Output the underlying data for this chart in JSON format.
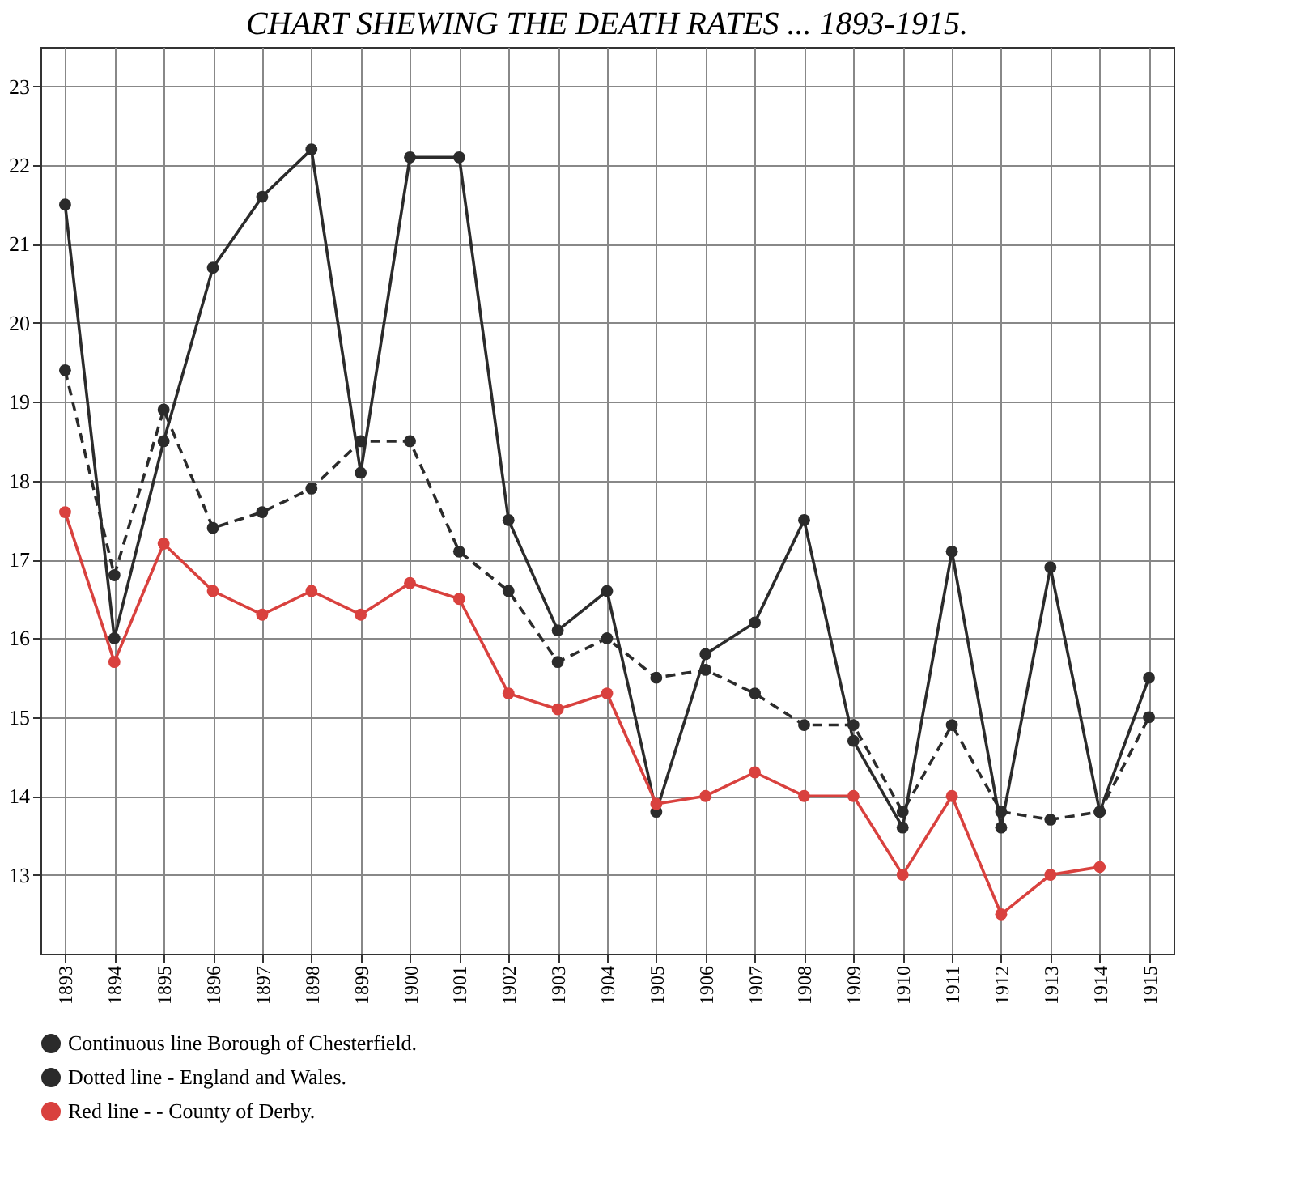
{
  "chart_data": {
    "type": "line",
    "title": "CHART SHEWING THE DEATH RATES ... 1893-1915.",
    "x": [
      1893,
      1894,
      1895,
      1896,
      1897,
      1898,
      1899,
      1900,
      1901,
      1902,
      1903,
      1904,
      1905,
      1906,
      1907,
      1908,
      1909,
      1910,
      1911,
      1912,
      1913,
      1914,
      1915
    ],
    "series": [
      {
        "name": "Continuous line   Borough of Chesterfield.",
        "color": "#2b2b2b",
        "line_style": "solid",
        "values": [
          21.5,
          16.0,
          18.5,
          20.7,
          21.6,
          22.2,
          18.1,
          22.1,
          22.1,
          17.5,
          16.1,
          16.6,
          13.8,
          15.8,
          16.2,
          17.5,
          14.7,
          13.6,
          17.1,
          13.6,
          16.9,
          13.8,
          15.5
        ]
      },
      {
        "name": "Dotted line  -  England and Wales.",
        "color": "#2b2b2b",
        "line_style": "dashed",
        "values": [
          19.4,
          16.8,
          18.9,
          17.4,
          17.6,
          17.9,
          18.5,
          18.5,
          17.1,
          16.6,
          15.7,
          16.0,
          15.5,
          15.6,
          15.3,
          14.9,
          14.9,
          13.8,
          14.9,
          13.8,
          13.7,
          13.8,
          15.0
        ]
      },
      {
        "name": "Red line  -  -  County of Derby.",
        "color": "#d9413e",
        "line_style": "solid",
        "values": [
          17.6,
          15.7,
          17.2,
          16.6,
          16.3,
          16.6,
          16.3,
          16.7,
          16.5,
          15.3,
          15.1,
          15.3,
          13.9,
          14.0,
          14.3,
          14.0,
          14.0,
          13.0,
          14.0,
          12.5,
          13.0,
          13.1,
          null
        ]
      }
    ],
    "xlim": [
      1892.5,
      1915.5
    ],
    "xticks": [
      1893,
      1894,
      1895,
      1896,
      1897,
      1898,
      1899,
      1900,
      1901,
      1902,
      1903,
      1904,
      1905,
      1906,
      1907,
      1908,
      1909,
      1910,
      1911,
      1912,
      1913,
      1914,
      1915
    ],
    "ylim": [
      12,
      23.5
    ],
    "yticks": [
      13,
      14,
      15,
      16,
      17,
      18,
      19,
      20,
      21,
      22,
      23
    ],
    "grid": true,
    "legend": "bottom",
    "marker": "circle"
  }
}
